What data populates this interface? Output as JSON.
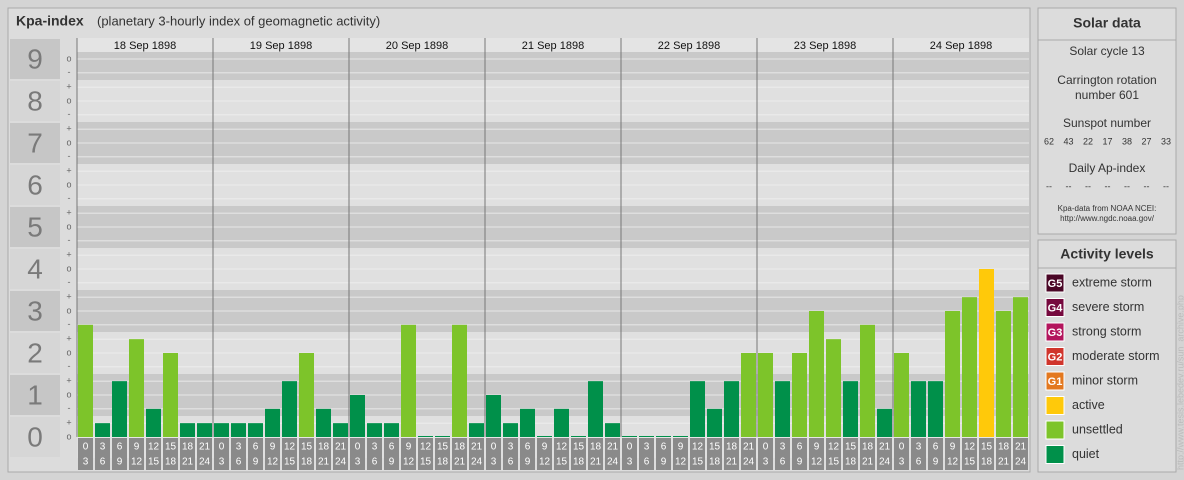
{
  "chart_data": {
    "type": "bar",
    "title": "Kpa-index",
    "subtitle": "(planetary 3-hourly index of geomagnetic activity)",
    "ylim": [
      -0.5,
      9.5
    ],
    "yticks": [
      0,
      1,
      2,
      3,
      4,
      5,
      6,
      7,
      8,
      9
    ],
    "minor_ticks": [
      {
        "value": 0,
        "label": "o"
      },
      {
        "value": 0.33,
        "label": "+"
      },
      {
        "value": 0.67,
        "label": "-"
      },
      {
        "value": 1,
        "label": "o"
      },
      {
        "value": 1.33,
        "label": "+"
      },
      {
        "value": 1.67,
        "label": "-"
      },
      {
        "value": 2,
        "label": "o"
      },
      {
        "value": 2.33,
        "label": "+"
      },
      {
        "value": 2.67,
        "label": "-"
      },
      {
        "value": 3,
        "label": "o"
      },
      {
        "value": 3.33,
        "label": "+"
      },
      {
        "value": 3.67,
        "label": "-"
      },
      {
        "value": 4,
        "label": "o"
      },
      {
        "value": 4.33,
        "label": "+"
      },
      {
        "value": 4.67,
        "label": "-"
      },
      {
        "value": 5,
        "label": "o"
      },
      {
        "value": 5.33,
        "label": "+"
      },
      {
        "value": 5.67,
        "label": "-"
      },
      {
        "value": 6,
        "label": "o"
      },
      {
        "value": 6.33,
        "label": "+"
      },
      {
        "value": 6.67,
        "label": "-"
      },
      {
        "value": 7,
        "label": "o"
      },
      {
        "value": 7.33,
        "label": "+"
      },
      {
        "value": 7.67,
        "label": "-"
      },
      {
        "value": 8,
        "label": "o"
      },
      {
        "value": 8.33,
        "label": "+"
      },
      {
        "value": 8.67,
        "label": "-"
      },
      {
        "value": 9,
        "label": "o"
      }
    ],
    "hour_labels": [
      "0",
      "3",
      "6",
      "9",
      "12",
      "15",
      "18",
      "21",
      "24"
    ],
    "days": [
      {
        "date": "18 Sep 1898",
        "values": [
          2.67,
          0.33,
          1.33,
          2.33,
          0.67,
          2,
          0.33,
          0.33
        ],
        "colors": [
          "#7dc42a",
          "#00904a",
          "#00904a",
          "#7dc42a",
          "#00904a",
          "#7dc42a",
          "#00904a",
          "#00904a"
        ]
      },
      {
        "date": "19 Sep 1898",
        "values": [
          0.33,
          0.33,
          0.33,
          0.67,
          1.33,
          2,
          0.67,
          0.33
        ],
        "colors": [
          "#00904a",
          "#00904a",
          "#00904a",
          "#00904a",
          "#00904a",
          "#7dc42a",
          "#00904a",
          "#00904a"
        ]
      },
      {
        "date": "20 Sep 1898",
        "values": [
          1,
          0.33,
          0.33,
          2.67,
          0,
          0,
          2.67,
          0.33
        ],
        "colors": [
          "#00904a",
          "#00904a",
          "#00904a",
          "#7dc42a",
          "#00904a",
          "#00904a",
          "#7dc42a",
          "#00904a"
        ]
      },
      {
        "date": "21 Sep 1898",
        "values": [
          1,
          0.33,
          0.67,
          0,
          0.67,
          0,
          1.33,
          0.33
        ],
        "colors": [
          "#00904a",
          "#00904a",
          "#00904a",
          "#00904a",
          "#00904a",
          "#00904a",
          "#00904a",
          "#00904a"
        ]
      },
      {
        "date": "22 Sep 1898",
        "values": [
          0,
          0,
          0,
          0,
          1.33,
          0.67,
          1.33,
          2
        ],
        "colors": [
          "#00904a",
          "#00904a",
          "#00904a",
          "#00904a",
          "#00904a",
          "#00904a",
          "#00904a",
          "#7dc42a"
        ]
      },
      {
        "date": "23 Sep 1898",
        "values": [
          2,
          1.33,
          2,
          3,
          2.33,
          1.33,
          2.67,
          0.67
        ],
        "colors": [
          "#7dc42a",
          "#00904a",
          "#7dc42a",
          "#7dc42a",
          "#7dc42a",
          "#00904a",
          "#7dc42a",
          "#00904a"
        ]
      },
      {
        "date": "24 Sep 1898",
        "values": [
          2,
          1.33,
          1.33,
          3,
          3.33,
          4,
          3,
          3.33
        ],
        "colors": [
          "#7dc42a",
          "#00904a",
          "#00904a",
          "#7dc42a",
          "#7dc42a",
          "#ffc90a",
          "#7dc42a",
          "#7dc42a"
        ]
      }
    ]
  },
  "solar_data": {
    "title": "Solar data",
    "cycle": "Solar cycle 13",
    "carrington": [
      "Carrington rotation",
      "number 601"
    ],
    "sunspot_title": "Sunspot number",
    "sunspots": [
      "62",
      "43",
      "22",
      "17",
      "38",
      "27",
      "33"
    ],
    "ap_title": "Daily Ap-index",
    "ap": [
      "--",
      "--",
      "--",
      "--",
      "--",
      "--",
      "--"
    ],
    "source": [
      "Kpa-data from NOAA NCEI:",
      "http://www.ngdc.noaa.gov/"
    ]
  },
  "activity_levels": {
    "title": "Activity levels",
    "items": [
      {
        "badge": "G5",
        "label": "extreme storm",
        "color": "#4a0626"
      },
      {
        "badge": "G4",
        "label": "severe storm",
        "color": "#76093e"
      },
      {
        "badge": "G3",
        "label": "strong storm",
        "color": "#b3145c"
      },
      {
        "badge": "G2",
        "label": "moderate storm",
        "color": "#d0352c"
      },
      {
        "badge": "G1",
        "label": "minor storm",
        "color": "#e3781f"
      },
      {
        "label": "active",
        "color": "#ffc90a"
      },
      {
        "label": "unsettled",
        "color": "#7dc42a"
      },
      {
        "label": "quiet",
        "color": "#00904a"
      }
    ]
  },
  "watermark": "http://www.tesis.lebedev.ru/sun_archive.php"
}
